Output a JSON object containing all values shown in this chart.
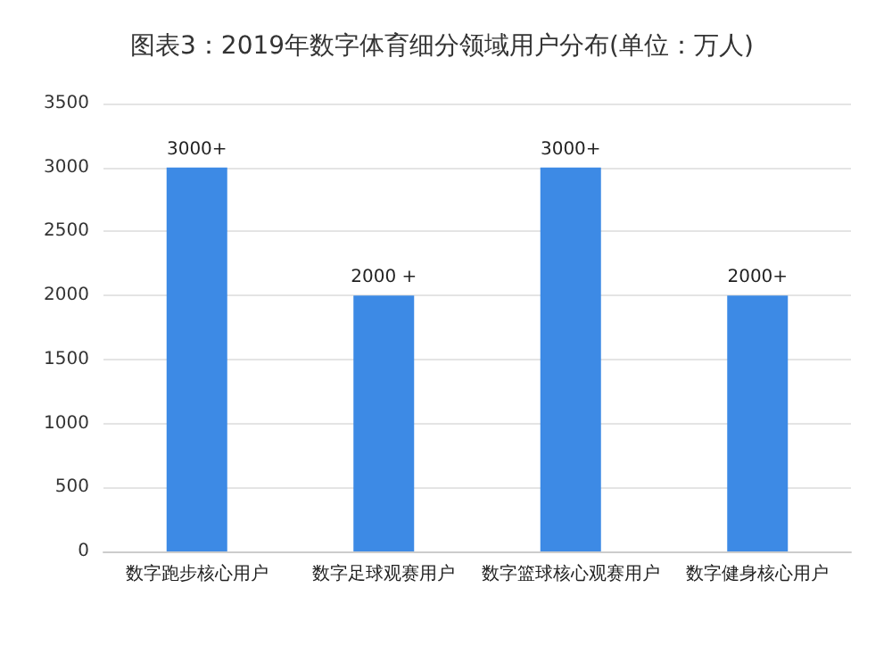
{
  "chart_data": {
    "type": "bar",
    "title": "图表3：2019年数字体育细分领域用户分布(单位：万人)",
    "categories": [
      "数字跑步核心用户",
      "数字足球观赛用户",
      "数字篮球核心观赛用户",
      "数字健身核心用户"
    ],
    "values": [
      3000,
      2000,
      3000,
      2000
    ],
    "value_labels": [
      "3000+",
      "2000 +",
      "3000+",
      "2000+"
    ],
    "color": "#3d8ae5",
    "ylim": [
      0,
      3500
    ],
    "yticks": [
      0,
      500,
      1000,
      1500,
      2000,
      2500,
      3000,
      3500
    ],
    "grid": "y"
  }
}
